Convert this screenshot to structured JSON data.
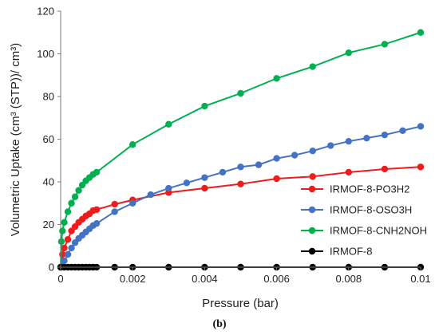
{
  "chart_data": {
    "type": "scatter",
    "xlabel": "Pressure (bar)",
    "ylabel": "Volumetric Uptake (cm³ (STP))/ cm³)",
    "xlim": [
      0,
      0.01
    ],
    "ylim": [
      0,
      120
    ],
    "x_ticks": [
      0,
      0.002,
      0.004,
      0.006,
      0.008,
      0.01
    ],
    "x_tick_labels": [
      "0",
      "0.002",
      "0.004",
      "0.006",
      "0.008",
      "0.01"
    ],
    "y_ticks": [
      0,
      20,
      40,
      60,
      80,
      100,
      120
    ],
    "y_tick_labels": [
      "0",
      "20",
      "40",
      "60",
      "80",
      "100",
      "120"
    ],
    "grid": false,
    "legend_position": "right",
    "caption": "(b)",
    "series": [
      {
        "name": "IRMOF-8-PO3H2",
        "color": "#ee1c1c",
        "x": [
          0,
          5e-05,
          0.0001,
          0.0002,
          0.0003,
          0.0004,
          0.0005,
          0.0006,
          0.0007,
          0.0008,
          0.0009,
          0.001,
          0.0015,
          0.002,
          0.003,
          0.004,
          0.005,
          0.006,
          0.007,
          0.008,
          0.009,
          0.01
        ],
        "y": [
          0,
          6,
          9,
          13,
          17,
          19,
          21,
          22.5,
          24,
          25,
          26.5,
          27,
          29.5,
          31.5,
          35,
          37,
          39,
          41.5,
          42.5,
          44.5,
          46,
          47
        ]
      },
      {
        "name": "IRMOF-8-OSO3H",
        "color": "#4472c4",
        "x": [
          0,
          0.0001,
          0.0002,
          0.0003,
          0.0004,
          0.0005,
          0.0006,
          0.0007,
          0.0008,
          0.0009,
          0.001,
          0.0015,
          0.002,
          0.0025,
          0.003,
          0.0035,
          0.004,
          0.0045,
          0.005,
          0.0055,
          0.006,
          0.0065,
          0.007,
          0.0075,
          0.008,
          0.0085,
          0.009,
          0.0095,
          0.01
        ],
        "y": [
          0,
          3,
          6,
          9,
          11.5,
          13.5,
          15,
          16.5,
          18,
          19.5,
          20.5,
          26,
          30,
          34,
          37,
          39.5,
          42,
          44.5,
          47,
          48,
          51,
          52.5,
          54.5,
          57,
          59,
          60.5,
          62,
          64,
          66
        ]
      },
      {
        "name": "IRMOF-8-CNH2NOH",
        "color": "#00b050",
        "x": [
          0,
          2e-05,
          5e-05,
          0.0001,
          0.0002,
          0.0003,
          0.0004,
          0.0005,
          0.0006,
          0.0007,
          0.0008,
          0.0009,
          0.001,
          0.002,
          0.003,
          0.004,
          0.005,
          0.006,
          0.007,
          0.008,
          0.009,
          0.01
        ],
        "y": [
          0,
          12,
          17,
          21,
          26,
          30,
          33,
          36,
          38.5,
          40.5,
          42,
          43.5,
          44.5,
          57.5,
          67,
          75.5,
          81.5,
          88.5,
          94,
          100.5,
          104.5,
          110
        ]
      },
      {
        "name": "IRMOF-8",
        "color": "#000000",
        "x": [
          0,
          0.0001,
          0.0002,
          0.0003,
          0.0004,
          0.0005,
          0.0006,
          0.0007,
          0.0008,
          0.0009,
          0.001,
          0.0015,
          0.002,
          0.003,
          0.004,
          0.005,
          0.006,
          0.007,
          0.008,
          0.009,
          0.01
        ],
        "y": [
          0,
          0,
          0,
          0,
          0,
          0,
          0,
          0,
          0,
          0,
          0,
          0,
          0,
          0,
          0,
          0,
          0,
          0,
          0,
          0,
          0
        ]
      }
    ]
  }
}
